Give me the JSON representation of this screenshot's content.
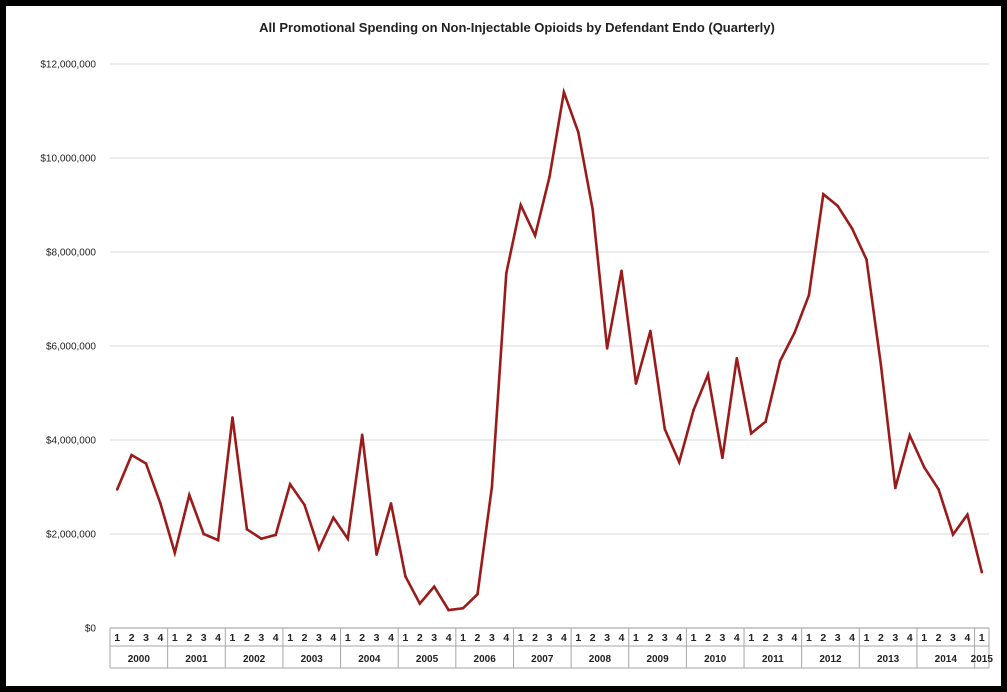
{
  "chart_data": {
    "type": "line",
    "title": "All Promotional Spending on Non-Injectable Opioids by Defendant Endo (Quarterly)",
    "xlabel": "",
    "ylabel": "",
    "ylim": [
      0,
      12000000
    ],
    "yticks": [
      0,
      2000000,
      4000000,
      6000000,
      8000000,
      10000000,
      12000000
    ],
    "ytick_labels": [
      "$0",
      "$2,000,000",
      "$4,000,000",
      "$6,000,000",
      "$8,000,000",
      "$10,000,000",
      "$12,000,000"
    ],
    "grid": "horizontal",
    "legend": "none",
    "line_color": "#9b1b1b",
    "quarter_labels": [
      "1",
      "2",
      "3",
      "4"
    ],
    "years": [
      "2000",
      "2001",
      "2002",
      "2003",
      "2004",
      "2005",
      "2006",
      "2007",
      "2008",
      "2009",
      "2010",
      "2011",
      "2012",
      "2013",
      "2014",
      "2015"
    ],
    "series": [
      {
        "values": [
          2950000,
          3680000,
          3500000,
          2650000,
          1600000,
          2830000,
          2000000,
          1870000,
          4480000,
          2100000,
          1900000,
          1980000,
          3060000,
          2620000,
          1680000,
          2350000,
          1900000,
          4110000,
          1560000,
          2650000,
          1100000,
          520000,
          880000,
          380000,
          420000,
          720000,
          3000000,
          7550000,
          9000000,
          8350000,
          9600000,
          11400000,
          10550000,
          8900000,
          5950000,
          7600000,
          5200000,
          6320000,
          4230000,
          3530000,
          4640000,
          5390000,
          3620000,
          5740000,
          4140000,
          4390000,
          5680000,
          6280000,
          7080000,
          9230000,
          8980000,
          8500000,
          7840000,
          5600000,
          2980000,
          4100000,
          3420000,
          2950000,
          1990000,
          2410000,
          1190000
        ]
      }
    ]
  }
}
